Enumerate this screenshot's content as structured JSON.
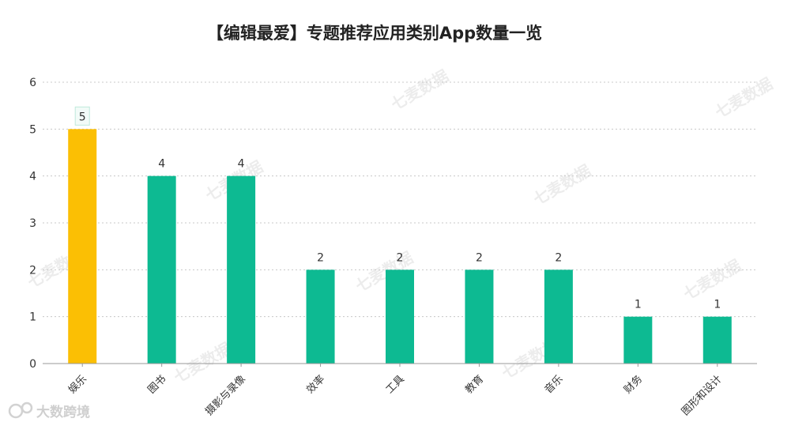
{
  "chart_data": {
    "type": "bar",
    "title": "【编辑最爱】专题推荐应用类别App数量一览",
    "categories": [
      "娱乐",
      "图书",
      "摄影与录像",
      "效率",
      "工具",
      "教育",
      "音乐",
      "财务",
      "图形和设计"
    ],
    "values": [
      5,
      4,
      4,
      2,
      2,
      2,
      2,
      1,
      1
    ],
    "ylim": [
      0,
      6
    ],
    "yticks": [
      0,
      1,
      2,
      3,
      4,
      5,
      6
    ],
    "grid": true,
    "highlight_index": 0,
    "colors": {
      "bar": "#0dba92",
      "highlight": "#fbbf04",
      "grid": "#c8c8c8",
      "axis": "#999999"
    }
  },
  "watermark": "七麦数据",
  "brand": "大数跨境"
}
